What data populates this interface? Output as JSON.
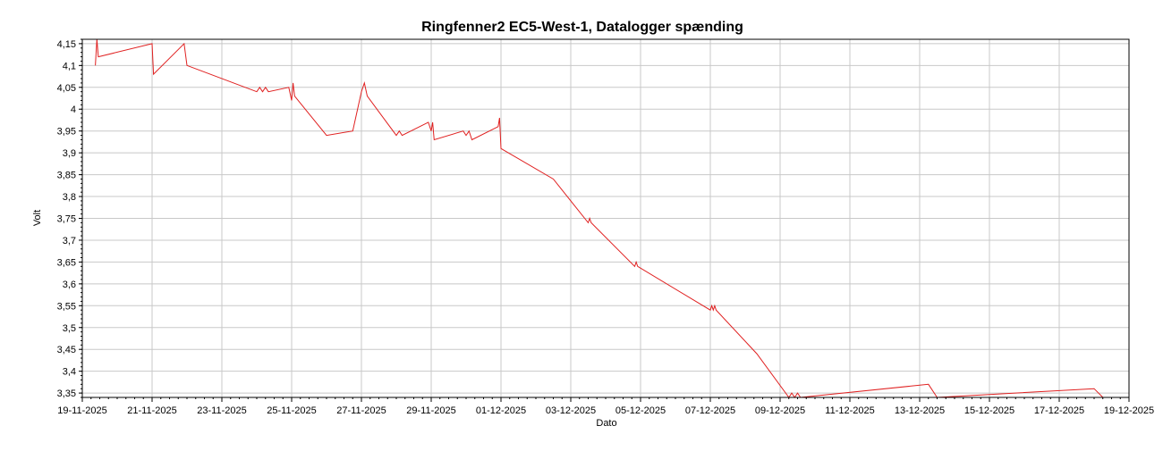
{
  "chart_data": {
    "type": "line",
    "title": "Ringfenner2 EC5-West-1, Datalogger spænding",
    "xlabel": "Dato",
    "ylabel": "Volt",
    "grid": true,
    "legend": "none",
    "series_color": "#e02020",
    "grid_color": "#c8c8c8",
    "x_ticks": [
      "19-11-2025",
      "21-11-2025",
      "23-11-2025",
      "25-11-2025",
      "27-11-2025",
      "29-11-2025",
      "01-12-2025",
      "03-12-2025",
      "05-12-2025",
      "07-12-2025",
      "09-12-2025",
      "11-12-2025",
      "13-12-2025",
      "15-12-2025",
      "17-12-2025",
      "19-12-2025"
    ],
    "y_ticks": [
      "3,35",
      "3,4",
      "3,45",
      "3,5",
      "3,55",
      "3,6",
      "3,65",
      "3,7",
      "3,75",
      "3,8",
      "3,85",
      "3,9",
      "3,95",
      "4",
      "4,05",
      "4,1",
      "4,15"
    ],
    "xlim": [
      "2025-11-19",
      "2025-12-19"
    ],
    "ylim": [
      3.34,
      4.16
    ],
    "series": [
      {
        "points": [
          [
            "2025-11-19T09:00",
            4.1
          ],
          [
            "2025-11-19T10:00",
            4.16
          ],
          [
            "2025-11-19T11:00",
            4.12
          ],
          [
            "2025-11-21T00:00",
            4.15
          ],
          [
            "2025-11-21T01:00",
            4.08
          ],
          [
            "2025-11-21T22:00",
            4.15
          ],
          [
            "2025-11-22T00:00",
            4.1
          ],
          [
            "2025-11-24T00:00",
            4.04
          ],
          [
            "2025-11-24T02:00",
            4.05
          ],
          [
            "2025-11-24T04:00",
            4.04
          ],
          [
            "2025-11-24T06:00",
            4.05
          ],
          [
            "2025-11-24T08:00",
            4.04
          ],
          [
            "2025-11-24T22:00",
            4.05
          ],
          [
            "2025-11-25T00:00",
            4.02
          ],
          [
            "2025-11-25T01:00",
            4.06
          ],
          [
            "2025-11-25T02:00",
            4.03
          ],
          [
            "2025-11-26T00:00",
            3.94
          ],
          [
            "2025-11-26T18:00",
            3.95
          ],
          [
            "2025-11-27T00:00",
            4.04
          ],
          [
            "2025-11-27T02:00",
            4.06
          ],
          [
            "2025-11-27T04:00",
            4.03
          ],
          [
            "2025-11-28T00:00",
            3.94
          ],
          [
            "2025-11-28T02:00",
            3.95
          ],
          [
            "2025-11-28T04:00",
            3.94
          ],
          [
            "2025-11-28T22:00",
            3.97
          ],
          [
            "2025-11-29T00:00",
            3.95
          ],
          [
            "2025-11-29T01:00",
            3.97
          ],
          [
            "2025-11-29T02:00",
            3.93
          ],
          [
            "2025-11-29T22:00",
            3.95
          ],
          [
            "2025-11-30T00:00",
            3.94
          ],
          [
            "2025-11-30T02:00",
            3.95
          ],
          [
            "2025-11-30T04:00",
            3.93
          ],
          [
            "2025-11-30T22:00",
            3.96
          ],
          [
            "2025-11-30T23:00",
            3.98
          ],
          [
            "2025-12-01T00:00",
            3.91
          ],
          [
            "2025-12-02T12:00",
            3.84
          ],
          [
            "2025-12-03T12:00",
            3.74
          ],
          [
            "2025-12-03T13:00",
            3.75
          ],
          [
            "2025-12-03T14:00",
            3.74
          ],
          [
            "2025-12-04T20:00",
            3.64
          ],
          [
            "2025-12-04T21:00",
            3.65
          ],
          [
            "2025-12-04T22:00",
            3.64
          ],
          [
            "2025-12-07T00:00",
            3.54
          ],
          [
            "2025-12-07T01:00",
            3.55
          ],
          [
            "2025-12-07T02:00",
            3.54
          ],
          [
            "2025-12-07T03:00",
            3.55
          ],
          [
            "2025-12-07T04:00",
            3.54
          ],
          [
            "2025-12-08T08:00",
            3.44
          ],
          [
            "2025-12-09T06:00",
            3.34
          ],
          [
            "2025-12-09T08:00",
            3.35
          ],
          [
            "2025-12-09T10:00",
            3.34
          ],
          [
            "2025-12-09T12:00",
            3.35
          ],
          [
            "2025-12-09T14:00",
            3.34
          ],
          [
            "2025-12-13T06:00",
            3.37
          ],
          [
            "2025-12-13T12:00",
            3.34
          ],
          [
            "2025-12-18T00:00",
            3.36
          ],
          [
            "2025-12-18T06:00",
            3.34
          ]
        ]
      }
    ]
  }
}
